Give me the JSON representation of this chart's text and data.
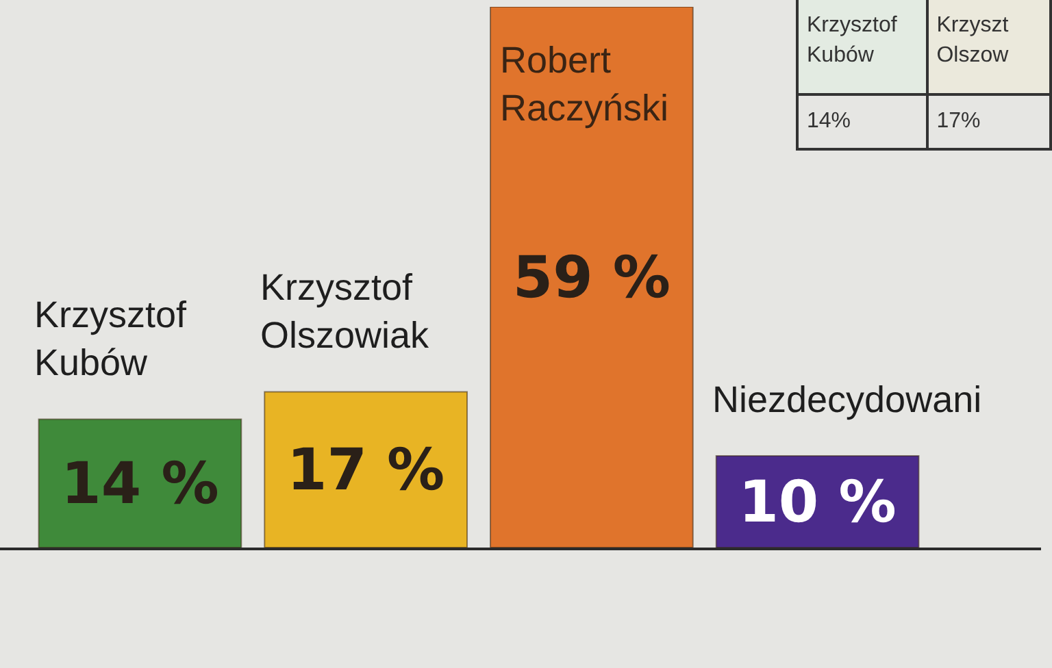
{
  "chart_data": [
    {
      "type": "bar",
      "categories": [
        "Krzysztof Kubów",
        "Krzysztof Olszowiak",
        "Robert Raczyński",
        "Niezdecydowani"
      ],
      "values": [
        14,
        17,
        59,
        10
      ],
      "colors": [
        "#3f8a3a",
        "#e8b424",
        "#e0742c",
        "#4b2b8c"
      ],
      "value_labels": [
        "14 %",
        "17 %",
        "59 %",
        "10 %"
      ]
    },
    {
      "type": "other",
      "categories": [
        "Krzysztof Kubów",
        "Krzyszt Olszow"
      ],
      "value_labels": [
        "14%",
        "17%"
      ]
    }
  ]
}
